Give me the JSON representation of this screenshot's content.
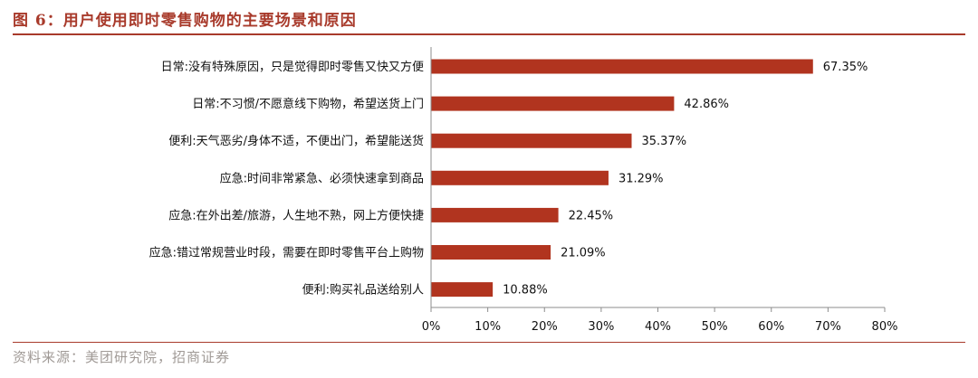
{
  "figure": {
    "title": "图 6：用户使用即时零售购物的主要场景和原因",
    "source": "资料来源：美团研究院，招商证券"
  },
  "colors": {
    "accent": "#a83a2b",
    "bar": "#b1341f",
    "source_text": "#a09a96"
  },
  "chart_data": {
    "type": "bar",
    "orientation": "horizontal",
    "categories": [
      "日常:没有特殊原因，只是觉得即时零售又快又方便",
      "日常:不习惯/不愿意线下购物，希望送货上门",
      "便利:天气恶劣/身体不适，不便出门，希望能送货",
      "应急:时间非常紧急、必须快速拿到商品",
      "应急:在外出差/旅游，人生地不熟，网上方便快捷",
      "应急:错过常规营业时段，需要在即时零售平台上购物",
      "便利:购买礼品送给别人"
    ],
    "values": [
      67.35,
      42.86,
      35.37,
      31.29,
      22.45,
      21.09,
      10.88
    ],
    "value_labels": [
      "67.35%",
      "42.86%",
      "35.37%",
      "31.29%",
      "22.45%",
      "21.09%",
      "10.88%"
    ],
    "xlim": [
      0,
      80
    ],
    "x_ticks": [
      0,
      10,
      20,
      30,
      40,
      50,
      60,
      70,
      80
    ],
    "x_tick_labels": [
      "0%",
      "10%",
      "20%",
      "30%",
      "40%",
      "50%",
      "60%",
      "70%",
      "80%"
    ],
    "grid": false,
    "legend": "none"
  }
}
